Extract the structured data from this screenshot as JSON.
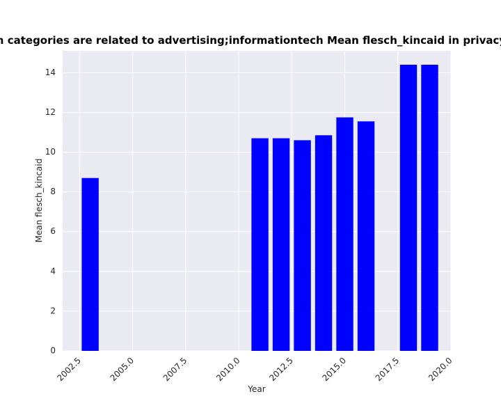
{
  "chart_data": {
    "type": "bar",
    "title": "Domain categories are related to advertising;informationtech Mean flesch_kincaid in privacy policies",
    "xlabel": "Year",
    "ylabel": "Mean flesch_kincaid",
    "xlim": [
      2001.7,
      2020.0
    ],
    "ylim": [
      0,
      15.1
    ],
    "x_ticks": [
      2002.5,
      2005.0,
      2007.5,
      2010.0,
      2012.5,
      2015.0,
      2017.5,
      2020.0
    ],
    "x_tick_labels": [
      "2002.5",
      "2005.0",
      "2007.5",
      "2010.0",
      "2012.5",
      "2015.0",
      "2017.5",
      "2020.0"
    ],
    "y_ticks": [
      0,
      2,
      4,
      6,
      8,
      10,
      12,
      14
    ],
    "y_tick_labels": [
      "0",
      "2",
      "4",
      "6",
      "8",
      "10",
      "12",
      "14"
    ],
    "bar_width": 0.8,
    "x": [
      2003,
      2011,
      2012,
      2013,
      2014,
      2015,
      2016,
      2018,
      2019
    ],
    "values": [
      8.7,
      10.7,
      10.7,
      10.6,
      10.85,
      11.75,
      11.55,
      14.4,
      14.4
    ],
    "bar_color": "#0000ff",
    "plot_background": "#eaeaf2",
    "grid": true,
    "grid_color": "#ffffff"
  }
}
